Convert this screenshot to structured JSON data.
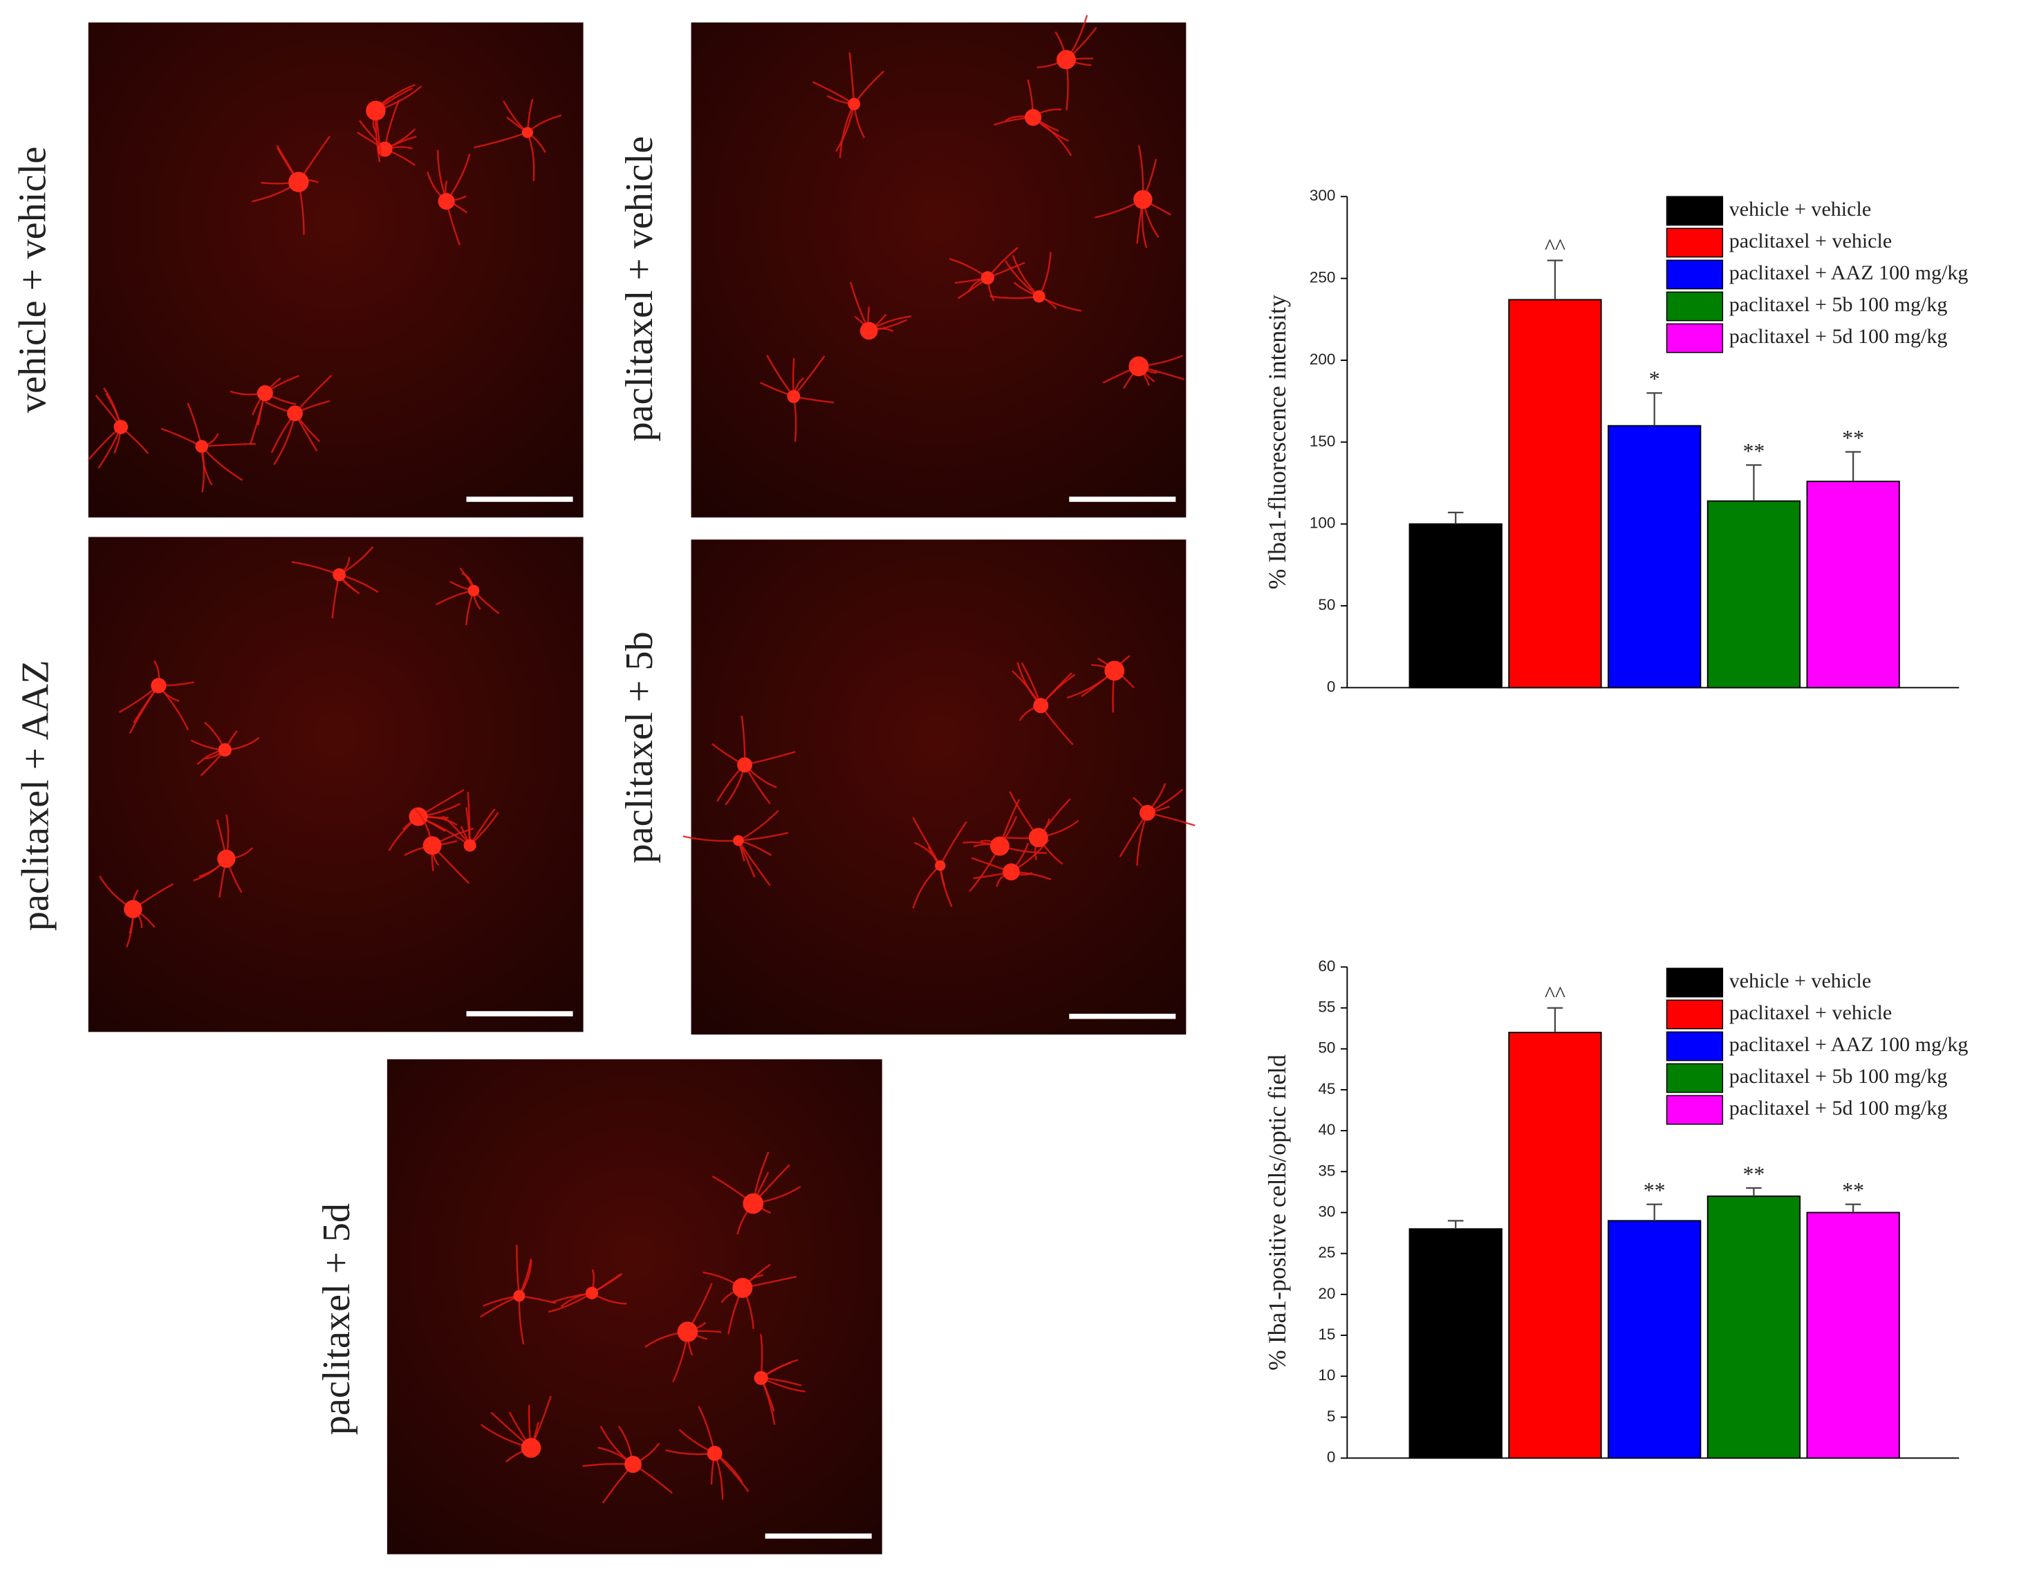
{
  "panels": [
    {
      "label": "vehicle + vehicle"
    },
    {
      "label": "paclitaxel + vehicle"
    },
    {
      "label": "paclitaxel + AAZ"
    },
    {
      "label": "paclitaxel + 5b"
    },
    {
      "label": "paclitaxel + 5d"
    }
  ],
  "chart_data": [
    {
      "type": "bar",
      "y_label": "% Iba1-fluorescence intensity",
      "ylim": [
        0,
        300
      ],
      "yticks": [
        0,
        50,
        100,
        150,
        200,
        250,
        300
      ],
      "series": [
        {
          "name": "vehicle + vehicle",
          "color": "#000000",
          "values": [
            100
          ],
          "errors": [
            7
          ]
        },
        {
          "name": "paclitaxel + vehicle",
          "color": "#ff0000",
          "values": [
            237
          ],
          "errors": [
            24
          ],
          "annotation": "^^"
        },
        {
          "name": "paclitaxel + AAZ 100 mg/kg",
          "color": "#0000ff",
          "values": [
            160
          ],
          "errors": [
            20
          ],
          "annotation": "*"
        },
        {
          "name": "paclitaxel + 5b 100 mg/kg",
          "color": "#008000",
          "values": [
            114
          ],
          "errors": [
            22
          ],
          "annotation": "**"
        },
        {
          "name": "paclitaxel + 5d 100 mg/kg",
          "color": "#ff00ff",
          "values": [
            126
          ],
          "errors": [
            18
          ],
          "annotation": "**"
        }
      ]
    },
    {
      "type": "bar",
      "y_label": "% Iba1-positive cells/optic field",
      "ylim": [
        0,
        60
      ],
      "yticks": [
        0,
        5,
        10,
        15,
        20,
        25,
        30,
        35,
        40,
        45,
        50,
        55,
        60
      ],
      "series": [
        {
          "name": "vehicle + vehicle",
          "color": "#000000",
          "values": [
            28
          ],
          "errors": [
            1
          ]
        },
        {
          "name": "paclitaxel + vehicle",
          "color": "#ff0000",
          "values": [
            52
          ],
          "errors": [
            3
          ],
          "annotation": "^^"
        },
        {
          "name": "paclitaxel + AAZ 100 mg/kg",
          "color": "#0000ff",
          "values": [
            29
          ],
          "errors": [
            2
          ],
          "annotation": "**"
        },
        {
          "name": "paclitaxel + 5b 100 mg/kg",
          "color": "#008000",
          "values": [
            32
          ],
          "errors": [
            1
          ],
          "annotation": "**"
        },
        {
          "name": "paclitaxel + 5d 100 mg/kg",
          "color": "#ff00ff",
          "values": [
            30
          ],
          "errors": [
            1
          ],
          "annotation": "**"
        }
      ]
    }
  ]
}
